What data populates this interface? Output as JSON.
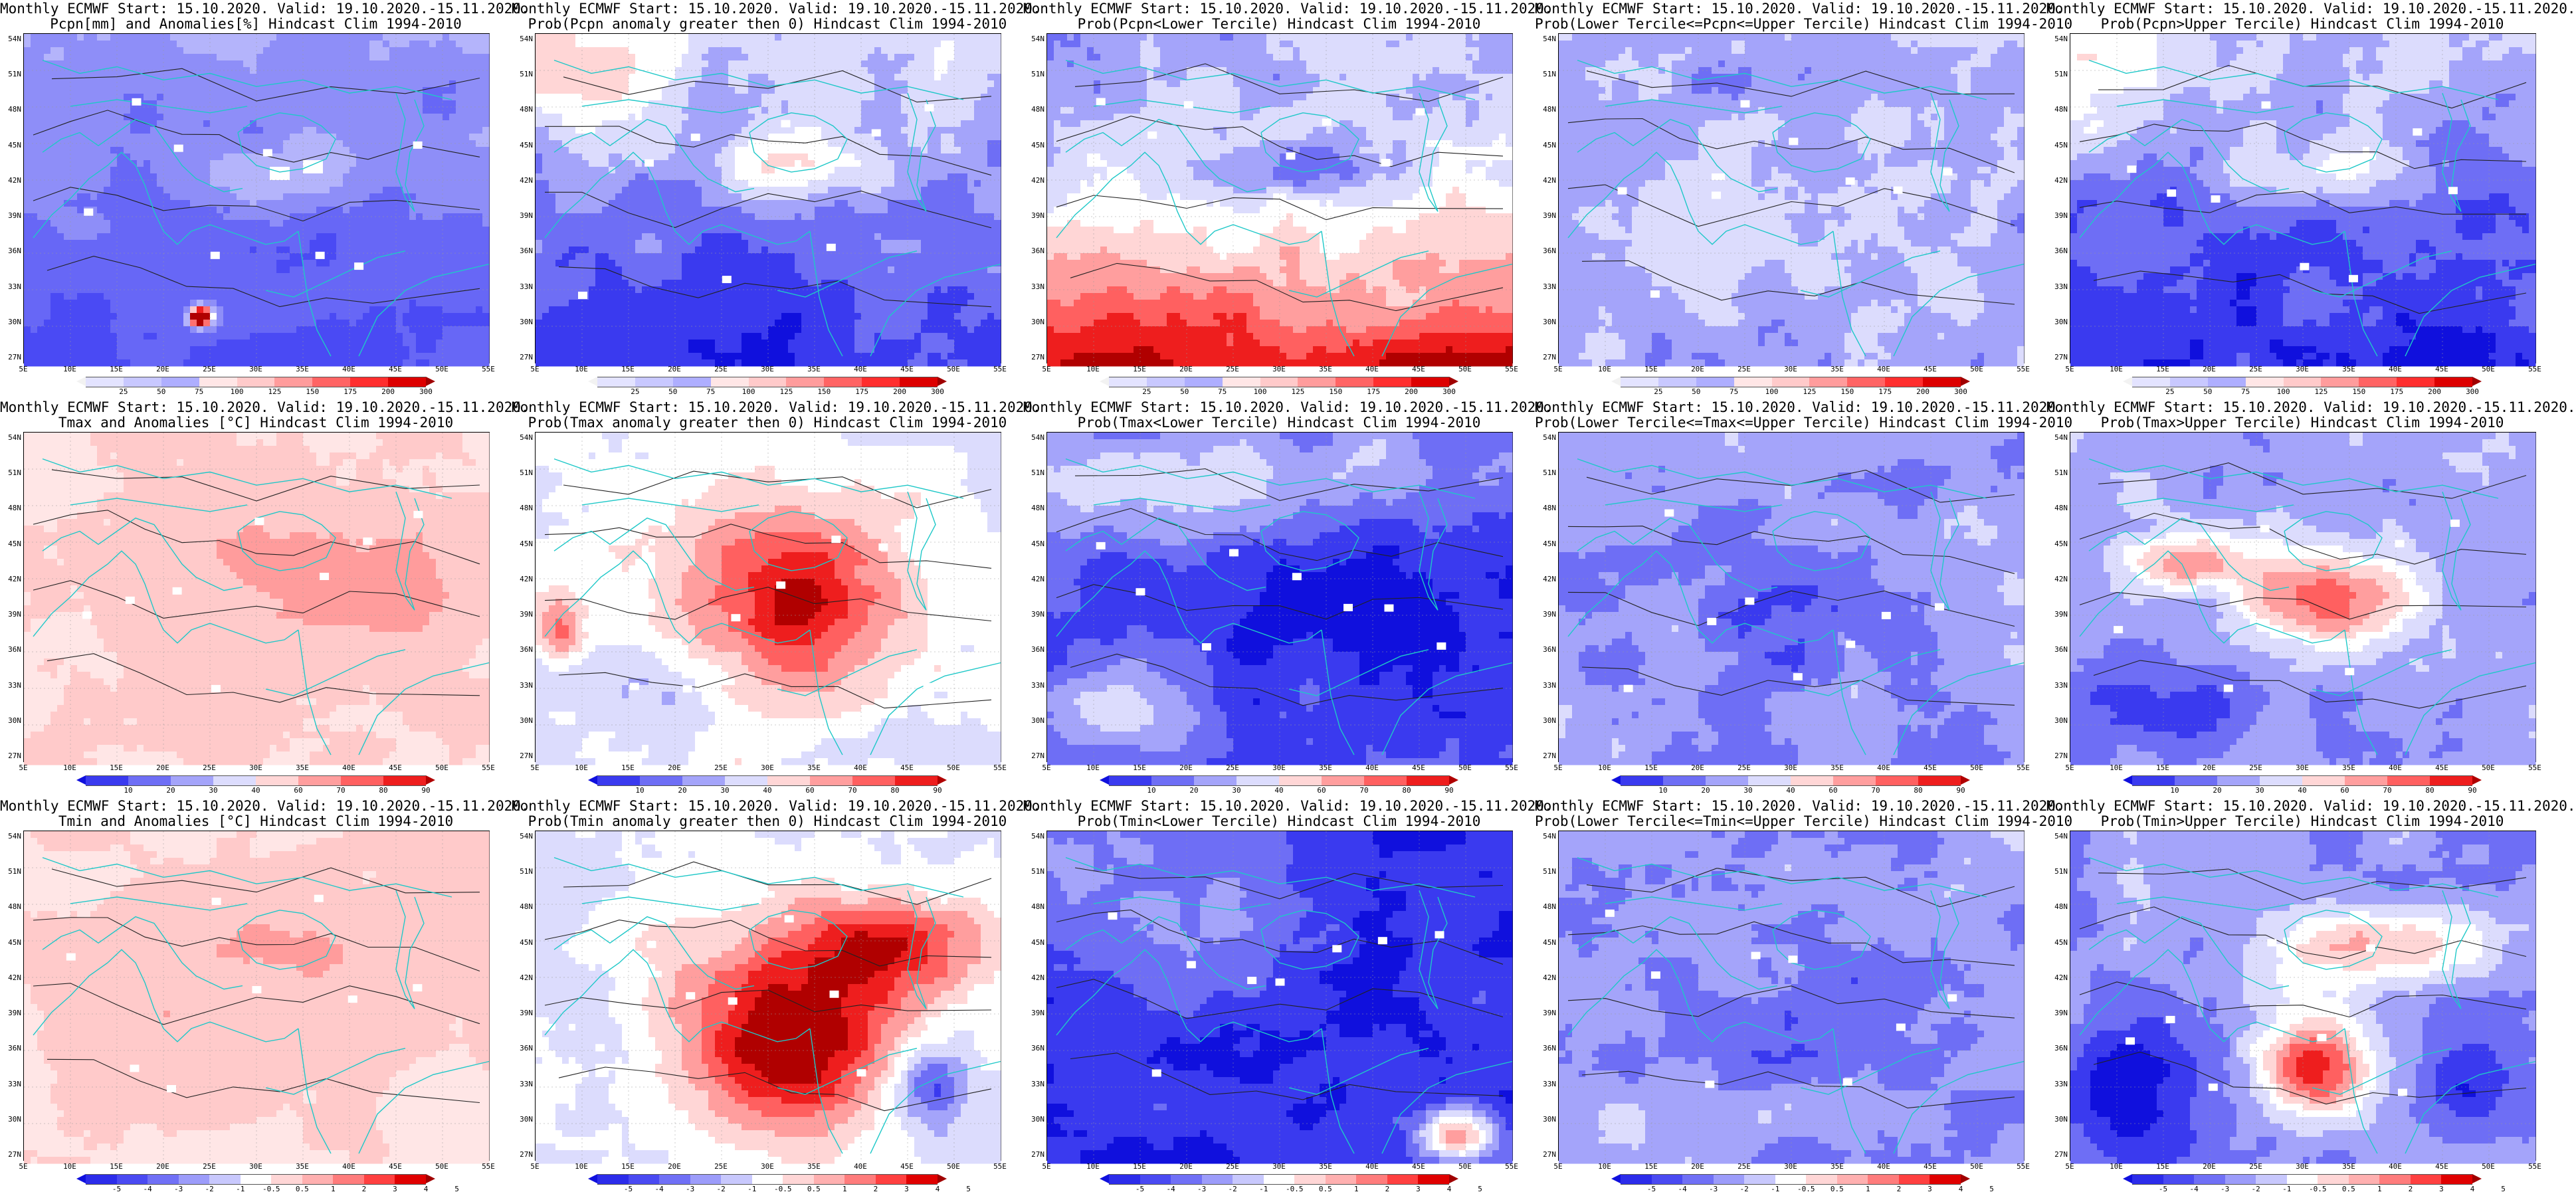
{
  "rows": [
    {
      "key": "pcpn",
      "panels": [
        {
          "line1": "Monthly ECMWF Start: 15.10.2020. Valid: 19.10.2020.-15.11.2020.",
          "line2": "Pcpn[mm] and Anomalies[%] Hindcast Clim 1994-2010",
          "kind": "anom_pcpn"
        },
        {
          "line1": "Monthly ECMWF Start: 15.10.2020. Valid: 19.10.2020.-15.11.2020.",
          "line2": "Prob(Pcpn anomaly greater then 0) Hindcast Clim 1994-2010",
          "kind": "prob_pcpn_pos"
        },
        {
          "line1": "Monthly ECMWF Start: 15.10.2020. Valid: 19.10.2020.-15.11.2020.",
          "line2": "Prob(Pcpn<Lower Tercile) Hindcast Clim 1994-2010",
          "kind": "prob_pcpn_low"
        },
        {
          "line1": "Monthly ECMWF Start: 15.10.2020. Valid: 19.10.2020.-15.11.2020.",
          "line2": "Prob(Lower Tercile<=Pcpn<=Upper Tercile) Hindcast Clim 1994-2010",
          "kind": "prob_pcpn_mid"
        },
        {
          "line1": "Monthly ECMWF Start: 15.10.2020. Valid: 19.10.2020.-15.11.2020.",
          "line2": "Prob(Pcpn>Upper Tercile) Hindcast Clim 1994-2010",
          "kind": "prob_pcpn_up"
        }
      ]
    },
    {
      "key": "tmax",
      "panels": [
        {
          "line1": "Monthly ECMWF Start: 15.10.2020. Valid: 19.10.2020.-15.11.2020.",
          "line2": "Tmax and Anomalies [°C] Hindcast Clim 1994-2010",
          "kind": "anom_temp"
        },
        {
          "line1": "Monthly ECMWF Start: 15.10.2020. Valid: 19.10.2020.-15.11.2020.",
          "line2": "Prob(Tmax anomaly greater then 0) Hindcast Clim 1994-2010",
          "kind": "prob_temp_pos"
        },
        {
          "line1": "Monthly ECMWF Start: 15.10.2020. Valid: 19.10.2020.-15.11.2020.",
          "line2": "Prob(Tmax<Lower Tercile) Hindcast Clim 1994-2010",
          "kind": "prob_temp_low"
        },
        {
          "line1": "Monthly ECMWF Start: 15.10.2020. Valid: 19.10.2020.-15.11.2020.",
          "line2": "Prob(Lower Tercile<=Tmax<=Upper Tercile) Hindcast Clim 1994-2010",
          "kind": "prob_temp_mid"
        },
        {
          "line1": "Monthly ECMWF Start: 15.10.2020. Valid: 19.10.2020.-15.11.2020.",
          "line2": "Prob(Tmax>Upper Tercile) Hindcast Clim 1994-2010",
          "kind": "prob_temp_up"
        }
      ]
    },
    {
      "key": "tmin",
      "panels": [
        {
          "line1": "Monthly ECMWF Start: 15.10.2020. Valid: 19.10.2020.-15.11.2020.",
          "line2": "Tmin and Anomalies [°C] Hindcast Clim 1994-2010",
          "kind": "anom_temp_min"
        },
        {
          "line1": "Monthly ECMWF Start: 15.10.2020. Valid: 19.10.2020.-15.11.2020.",
          "line2": "Prob(Tmin anomaly greater then 0) Hindcast Clim 1994-2010",
          "kind": "prob_tmin_pos"
        },
        {
          "line1": "Monthly ECMWF Start: 15.10.2020. Valid: 19.10.2020.-15.11.2020.",
          "line2": "Prob(Tmin<Lower Tercile) Hindcast Clim 1994-2010",
          "kind": "prob_tmin_low"
        },
        {
          "line1": "Monthly ECMWF Start: 15.10.2020. Valid: 19.10.2020.-15.11.2020.",
          "line2": "Prob(Lower Tercile<=Tmin<=Upper Tercile) Hindcast Clim 1994-2010",
          "kind": "prob_tmin_mid"
        },
        {
          "line1": "Monthly ECMWF Start: 15.10.2020. Valid: 19.10.2020.-15.11.2020.",
          "line2": "Prob(Tmin>Upper Tercile) Hindcast Clim 1994-2010",
          "kind": "prob_tmin_up"
        }
      ]
    }
  ],
  "axes": {
    "lat_labels": [
      "54N",
      "51N",
      "48N",
      "45N",
      "42N",
      "39N",
      "36N",
      "33N",
      "30N",
      "27N"
    ],
    "lon_labels": [
      "5E",
      "10E",
      "15E",
      "20E",
      "25E",
      "30E",
      "35E",
      "40E",
      "45E",
      "50E",
      "55E"
    ]
  },
  "colorbars": {
    "pcpn_anom": {
      "labels": [
        "25",
        "50",
        "75",
        "100",
        "125",
        "150",
        "175",
        "200",
        "300"
      ],
      "colors": [
        "#f2f2f2",
        "#e3e3ff",
        "#c8c8ff",
        "#aeaeff",
        "#ffe6e6",
        "#ffcaca",
        "#ff9c9c",
        "#ff6464",
        "#ff2e2e",
        "#dd0000",
        "#a00000"
      ]
    },
    "prob": {
      "labels": [
        "10",
        "20",
        "30",
        "40",
        "60",
        "70",
        "80",
        "90"
      ],
      "colors": [
        "#1010dd",
        "#3a3aef",
        "#6e6ef5",
        "#a4a4fa",
        "#dcdcfd",
        "#ffd6d6",
        "#ff9e9e",
        "#ff6060",
        "#ee1e1e",
        "#b00000"
      ]
    },
    "temp_anom": {
      "labels": [
        "-5",
        "-4",
        "-3",
        "-2",
        "-1",
        "-0.5",
        "0.5",
        "1",
        "2",
        "3",
        "4",
        "5"
      ],
      "colors": [
        "#1010dd",
        "#2c2cea",
        "#4a4af2",
        "#7070f6",
        "#9c9cfa",
        "#c8c8fd",
        "#ffffff",
        "#ffd6d6",
        "#ffb0b0",
        "#ff7c7c",
        "#ff4040",
        "#e00000",
        "#a00000"
      ]
    }
  },
  "row_colorbar": [
    "pcpn_anom",
    "prob",
    "temp_anom"
  ]
}
